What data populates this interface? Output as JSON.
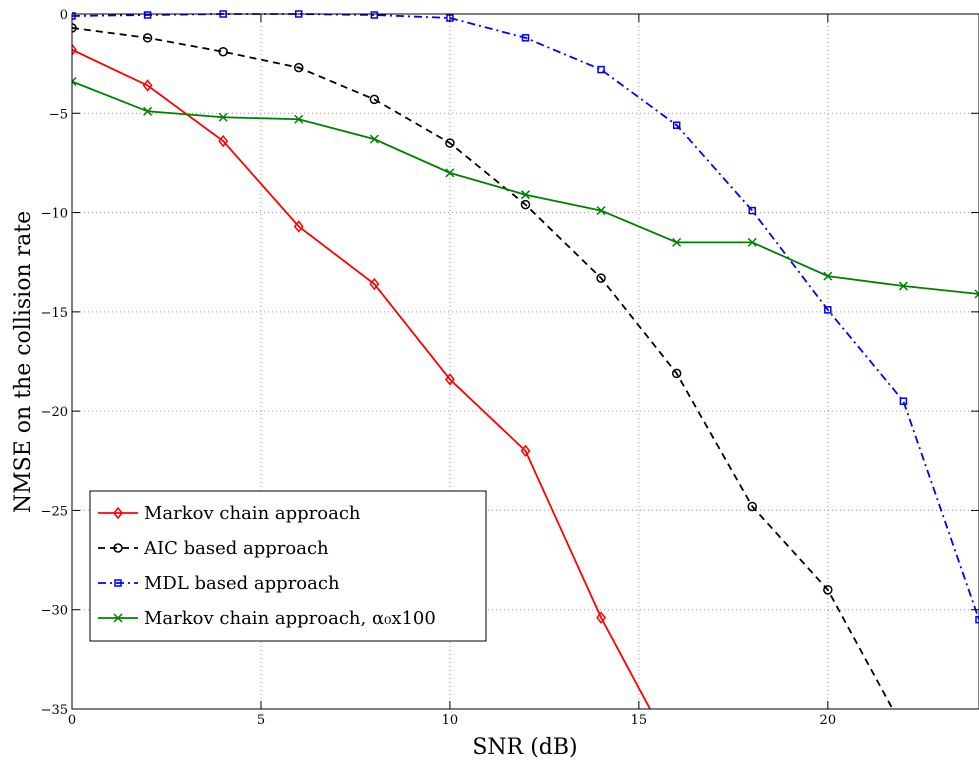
{
  "chart_data": {
    "type": "line",
    "xlabel": "SNR (dB)",
    "ylabel": "NMSE on the collision rate",
    "xlim": [
      0,
      24
    ],
    "ylim": [
      -35,
      0
    ],
    "xticks": [
      0,
      5,
      10,
      15,
      20
    ],
    "yticks": [
      0,
      -5,
      -10,
      -15,
      -20,
      -25,
      -30,
      -35
    ],
    "grid": true,
    "legend_position": "bottom-left",
    "series": [
      {
        "name": "Markov chain approach",
        "color": "#ff0000",
        "dash": "solid",
        "marker": "diamond",
        "x": [
          0,
          2,
          4,
          6,
          8,
          10,
          12,
          14,
          16
        ],
        "y": [
          -1.8,
          -3.6,
          -6.4,
          -10.7,
          -13.6,
          -18.4,
          -22.0,
          -30.4,
          -37.5
        ]
      },
      {
        "name": "AIC based approach",
        "color": "#000000",
        "dash": "dashed",
        "marker": "circle",
        "x": [
          0,
          2,
          4,
          6,
          8,
          10,
          12,
          14,
          16,
          18,
          20,
          22
        ],
        "y": [
          -0.7,
          -1.2,
          -1.9,
          -2.7,
          -4.3,
          -6.5,
          -9.6,
          -13.3,
          -18.1,
          -24.8,
          -29.0,
          -36.0
        ]
      },
      {
        "name": "MDL based approach",
        "color": "#0000ff",
        "dash": "dashdot",
        "marker": "square",
        "x": [
          0,
          2,
          4,
          6,
          8,
          10,
          12,
          14,
          16,
          18,
          20,
          22,
          24
        ],
        "y": [
          -0.1,
          -0.05,
          0.0,
          0.0,
          -0.05,
          -0.2,
          -1.2,
          -2.8,
          -5.6,
          -9.9,
          -14.9,
          -19.5,
          -30.5
        ]
      },
      {
        "name": "Markov chain approach, α₀x100",
        "color": "#008000",
        "dash": "solid",
        "marker": "x",
        "x": [
          0,
          2,
          4,
          6,
          8,
          10,
          12,
          14,
          16,
          18,
          20,
          22,
          24
        ],
        "y": [
          -3.4,
          -4.9,
          -5.2,
          -5.3,
          -6.3,
          -8.0,
          -9.1,
          -9.9,
          -11.5,
          -11.5,
          -13.2,
          -13.7,
          -14.1
        ]
      }
    ]
  }
}
